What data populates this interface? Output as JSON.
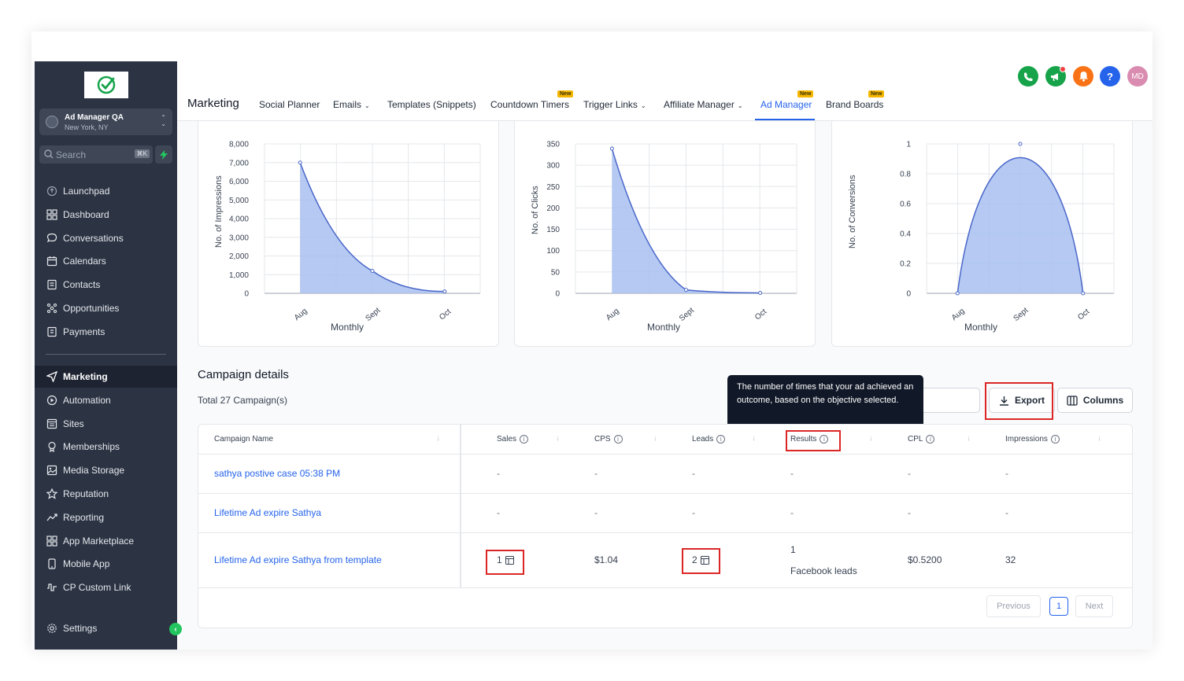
{
  "sidebar": {
    "account": {
      "name": "Ad Manager QA",
      "location": "New York, NY"
    },
    "search": {
      "placeholder": "Search",
      "shortcut": "⌘K"
    },
    "items_top": [
      {
        "label": "Launchpad",
        "icon": "launchpad-icon"
      },
      {
        "label": "Dashboard",
        "icon": "dashboard-icon"
      },
      {
        "label": "Conversations",
        "icon": "chat-icon"
      },
      {
        "label": "Calendars",
        "icon": "calendar-icon"
      },
      {
        "label": "Contacts",
        "icon": "contacts-icon"
      },
      {
        "label": "Opportunities",
        "icon": "opportunities-icon"
      },
      {
        "label": "Payments",
        "icon": "payments-icon"
      }
    ],
    "items_bottom": [
      {
        "label": "Marketing",
        "icon": "send-icon"
      },
      {
        "label": "Automation",
        "icon": "automation-icon"
      },
      {
        "label": "Sites",
        "icon": "sites-icon"
      },
      {
        "label": "Memberships",
        "icon": "memberships-icon"
      },
      {
        "label": "Media Storage",
        "icon": "image-icon"
      },
      {
        "label": "Reputation",
        "icon": "star-icon"
      },
      {
        "label": "Reporting",
        "icon": "chart-line-icon"
      },
      {
        "label": "App Marketplace",
        "icon": "grid-icon"
      },
      {
        "label": "Mobile App",
        "icon": "mobile-icon"
      },
      {
        "label": "CP Custom Link",
        "icon": "custom-link-icon"
      }
    ],
    "settings_label": "Settings"
  },
  "topnav": {
    "title": "Marketing",
    "tabs": [
      {
        "label": "Social Planner"
      },
      {
        "label": "Emails"
      },
      {
        "label": "Templates (Snippets)"
      },
      {
        "label": "Countdown Timers"
      },
      {
        "label": "Trigger Links"
      },
      {
        "label": "Affiliate Manager"
      },
      {
        "label": "Ad Manager"
      },
      {
        "label": "Brand Boards"
      }
    ],
    "new_badge": "New",
    "avatar_initials": "MD",
    "colors": {
      "phone": "#16a34a",
      "megaphone": "#16a34a",
      "bell": "#f97316",
      "help": "#2563eb",
      "avatar": "#d98cb0"
    }
  },
  "chart_data": [
    {
      "type": "area",
      "x": [
        "Aug",
        "Sept",
        "Oct"
      ],
      "values": [
        7000,
        1200,
        100
      ],
      "xlabel": "Monthly",
      "ylabel": "No. of Impressions",
      "ylim": [
        0,
        8000
      ],
      "yticks": [
        "8,000",
        "7,000",
        "6,000",
        "5,000",
        "4,000",
        "3,000",
        "2,000",
        "1,000",
        "0"
      ]
    },
    {
      "type": "area",
      "x": [
        "Aug",
        "Sept",
        "Oct"
      ],
      "values": [
        339,
        8,
        1
      ],
      "xlabel": "Monthly",
      "ylabel": "No. of Clicks",
      "ylim": [
        0,
        350
      ],
      "yticks": [
        "350",
        "300",
        "250",
        "200",
        "150",
        "100",
        "50",
        "0"
      ]
    },
    {
      "type": "area",
      "x": [
        "Aug",
        "Sept",
        "Oct"
      ],
      "values": [
        0,
        1,
        0
      ],
      "xlabel": "Monthly",
      "ylabel": "No. of Conversions",
      "ylim": [
        0,
        1
      ],
      "yticks": [
        "1",
        "0.8",
        "0.6",
        "0.4",
        "0.2",
        "0"
      ]
    }
  ],
  "campaigns": {
    "title": "Campaign details",
    "total": "Total 27 Campaign(s)",
    "tooltip": "The number of times that your ad achieved an outcome, based on the objective selected.",
    "export_label": "Export",
    "columns_label": "Columns",
    "headers": [
      "Campaign Name",
      "Sales",
      "CPS",
      "Leads",
      "Results",
      "CPL",
      "Impressions"
    ],
    "rows": [
      {
        "name": "sathya postive case 05:38 PM",
        "sales": "-",
        "cps": "-",
        "leads": "-",
        "results": "-",
        "results_sub": "",
        "cpl": "-",
        "impressions": "-"
      },
      {
        "name": "Lifetime Ad expire Sathya",
        "sales": "-",
        "cps": "-",
        "leads": "-",
        "results": "-",
        "results_sub": "",
        "cpl": "-",
        "impressions": "-"
      },
      {
        "name": "Lifetime Ad expire Sathya from template",
        "sales": "1",
        "cps": "$1.04",
        "leads": "2",
        "results": "1",
        "results_sub": "Facebook leads",
        "cpl": "$0.5200",
        "impressions": "32"
      }
    ],
    "pagination": {
      "previous": "Previous",
      "page": "1",
      "next": "Next"
    }
  }
}
